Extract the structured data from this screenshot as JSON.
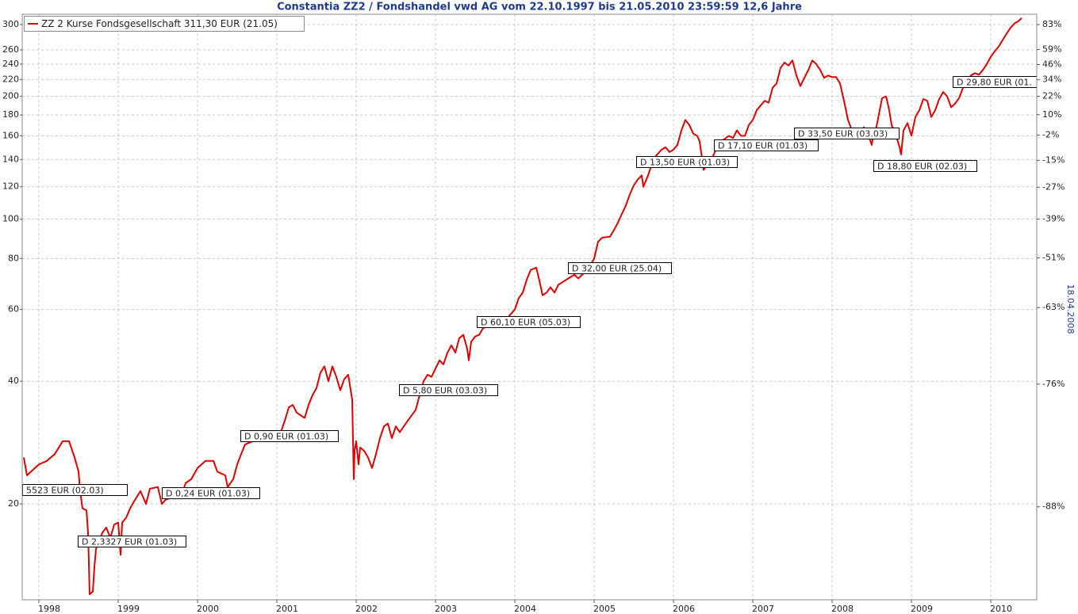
{
  "chart_data": {
    "type": "line",
    "title": "Constantia ZZ2 / Fondshandel vwd AG vom 22.10.1997 bis 21.05.2010 23:59:59 12,6 Jahre",
    "side_label": "18.04.2008",
    "x": [
      1997.81,
      1997.85,
      1997.95,
      1998.0,
      1998.1,
      1998.2,
      1998.3,
      1998.38,
      1998.45,
      1998.5,
      1998.52,
      1998.55,
      1998.6,
      1998.62,
      1998.64,
      1998.68,
      1998.7,
      1998.72,
      1998.75,
      1998.8,
      1998.85,
      1998.9,
      1998.95,
      1999.0,
      1999.03,
      1999.05,
      1999.1,
      1999.15,
      1999.2,
      1999.28,
      1999.35,
      1999.4,
      1999.5,
      1999.55,
      1999.6,
      1999.7,
      1999.8,
      1999.85,
      1999.92,
      2000.0,
      2000.05,
      2000.1,
      2000.2,
      2000.25,
      2000.35,
      2000.38,
      2000.45,
      2000.5,
      2000.55,
      2000.6,
      2000.7,
      2000.8,
      2000.9,
      2000.95,
      2001.0,
      2001.05,
      2001.1,
      2001.15,
      2001.2,
      2001.25,
      2001.3,
      2001.35,
      2001.4,
      2001.45,
      2001.5,
      2001.55,
      2001.6,
      2001.65,
      2001.7,
      2001.75,
      2001.8,
      2001.85,
      2001.9,
      2001.95,
      2001.97,
      2001.98,
      2002.0,
      2002.03,
      2002.05,
      2002.1,
      2002.15,
      2002.2,
      2002.25,
      2002.3,
      2002.35,
      2002.4,
      2002.45,
      2002.5,
      2002.55,
      2002.6,
      2002.65,
      2002.7,
      2002.75,
      2002.8,
      2002.85,
      2002.9,
      2002.95,
      2003.0,
      2003.05,
      2003.1,
      2003.15,
      2003.2,
      2003.25,
      2003.3,
      2003.35,
      2003.4,
      2003.42,
      2003.45,
      2003.5,
      2003.55,
      2003.6,
      2003.7,
      2003.8,
      2003.9,
      2004.0,
      2004.05,
      2004.1,
      2004.15,
      2004.2,
      2004.27,
      2004.3,
      2004.35,
      2004.4,
      2004.45,
      2004.5,
      2004.55,
      2004.6,
      2004.65,
      2004.7,
      2004.75,
      2004.8,
      2004.85,
      2004.92,
      2005.0,
      2005.05,
      2005.1,
      2005.2,
      2005.25,
      2005.3,
      2005.35,
      2005.4,
      2005.45,
      2005.5,
      2005.55,
      2005.6,
      2005.62,
      2005.68,
      2005.72,
      2005.78,
      2005.85,
      2005.9,
      2005.95,
      2006.0,
      2006.05,
      2006.1,
      2006.15,
      2006.2,
      2006.25,
      2006.3,
      2006.33,
      2006.38,
      2006.42,
      2006.5,
      2006.55,
      2006.6,
      2006.7,
      2006.75,
      2006.8,
      2006.85,
      2006.9,
      2006.95,
      2007.0,
      2007.05,
      2007.1,
      2007.15,
      2007.2,
      2007.25,
      2007.3,
      2007.35,
      2007.4,
      2007.45,
      2007.5,
      2007.55,
      2007.6,
      2007.65,
      2007.7,
      2007.75,
      2007.8,
      2007.85,
      2007.9,
      2007.95,
      2008.0,
      2008.05,
      2008.1,
      2008.15,
      2008.2,
      2008.25,
      2008.3,
      2008.35,
      2008.4,
      2008.45,
      2008.5,
      2008.52,
      2008.55,
      2008.6,
      2008.63,
      2008.68,
      2008.72,
      2008.75,
      2008.8,
      2008.85,
      2008.87,
      2008.9,
      2008.95,
      2009.0,
      2009.05,
      2009.1,
      2009.15,
      2009.2,
      2009.25,
      2009.3,
      2009.35,
      2009.4,
      2009.45,
      2009.5,
      2009.55,
      2009.6,
      2009.65,
      2009.7,
      2009.75,
      2009.8,
      2009.85,
      2009.9,
      2009.95,
      2010.0,
      2010.05,
      2010.1,
      2010.15,
      2010.2,
      2010.25,
      2010.3,
      2010.35,
      2010.39
    ],
    "series": [
      {
        "name": "ZZ 2 Kurse Fondsgesellschaft 311,30 EUR (21.05)",
        "color": "#e00000",
        "values": [
          26,
          23.5,
          24.5,
          25,
          25.5,
          26.5,
          28.5,
          28.5,
          26,
          24,
          21.5,
          19.5,
          19.3,
          17,
          12,
          12.2,
          14,
          15.5,
          16,
          17,
          17.5,
          16.5,
          17.8,
          18,
          15,
          18,
          18.5,
          19.5,
          20.3,
          21.5,
          20,
          21.8,
          22,
          20,
          20.5,
          20.8,
          21,
          22.5,
          23,
          24.5,
          25,
          25.5,
          25.5,
          24,
          23.5,
          22,
          23,
          25,
          26.5,
          28,
          28.5,
          28.5,
          29.5,
          30.2,
          29.5,
          30,
          32,
          34.5,
          35,
          33.5,
          33,
          32.5,
          35,
          37,
          38.5,
          42,
          43.5,
          40,
          43.5,
          41,
          38,
          40.5,
          41.5,
          36,
          23,
          27,
          28.5,
          25,
          27.5,
          27,
          26,
          24.5,
          26.5,
          29,
          31,
          31.5,
          29,
          31,
          30,
          31,
          32,
          33,
          34,
          37,
          40,
          41.5,
          41,
          43,
          45,
          44,
          47,
          49,
          47,
          51,
          52,
          48,
          45,
          50,
          51.5,
          52,
          54,
          55,
          57.5,
          57,
          60,
          64,
          66,
          71,
          75,
          76,
          72,
          65,
          66,
          68,
          66,
          69,
          70,
          71,
          72,
          73,
          71.5,
          73,
          75,
          80,
          88,
          90,
          90.5,
          94,
          98,
          103,
          108,
          115,
          121,
          125,
          128,
          120,
          128,
          135,
          143,
          148,
          150,
          146,
          148,
          152,
          165,
          175,
          170,
          162,
          160,
          155,
          132,
          136,
          143,
          150,
          155,
          160,
          158,
          165,
          160,
          160,
          170,
          175,
          185,
          190,
          195,
          193,
          210,
          215,
          235,
          242,
          238,
          245,
          225,
          212,
          222,
          232,
          245,
          240,
          232,
          222,
          225,
          223,
          223,
          215,
          195,
          175,
          165,
          165,
          160,
          168,
          162,
          152,
          162,
          165,
          185,
          198,
          200,
          185,
          170,
          162,
          150,
          144,
          165,
          172,
          160,
          178,
          185,
          197,
          195,
          178,
          185,
          197,
          205,
          200,
          188,
          192,
          198,
          210,
          218,
          225,
          228,
          226,
          232,
          240,
          250,
          258,
          265,
          275,
          285,
          295,
          302,
          306,
          311.3
        ]
      }
    ],
    "xlim": [
      1997.79,
      2010.58
    ],
    "xticks": [
      1998,
      1999,
      2000,
      2001,
      2002,
      2003,
      2004,
      2005,
      2006,
      2007,
      2008,
      2009,
      2010
    ],
    "ylim": [
      11.64,
      318
    ],
    "ylog": true,
    "yticks": [
      20,
      40,
      60,
      80,
      100,
      120,
      140,
      160,
      180,
      200,
      220,
      240,
      260,
      300
    ],
    "y2lim": [
      -92.9,
      94.0
    ],
    "y2ticks": [
      {
        "value": 83,
        "label": "83%"
      },
      {
        "value": 59,
        "label": "59%"
      },
      {
        "value": 46,
        "label": "46%"
      },
      {
        "value": 34,
        "label": "34%"
      },
      {
        "value": 22,
        "label": "22%"
      },
      {
        "value": 10,
        "label": "10%"
      },
      {
        "value": -2,
        "label": "-2%"
      },
      {
        "value": -15,
        "label": "-15%"
      },
      {
        "value": -27,
        "label": "-27%"
      },
      {
        "value": -39,
        "label": "-39%"
      },
      {
        "value": -51,
        "label": "-51%"
      },
      {
        "value": -63,
        "label": "-63%"
      },
      {
        "value": -76,
        "label": "-76%"
      },
      {
        "value": -88,
        "label": "-88%"
      }
    ],
    "grid": true,
    "legend": "upper left",
    "annotations": [
      "5523 EUR (02.03)",
      "D 2,3327 EUR (01.03)",
      "D 0,24 EUR (01.03)",
      "D 0,90 EUR (01.03)",
      "D 5,80 EUR (03.03)",
      "D 60,10 EUR (05.03)",
      "D 32,00 EUR (25.04)",
      "D 13,50 EUR (01.03)",
      "D 17,10 EUR (01.03)",
      "D 33,50 EUR (03.03)",
      "D 18,80 EUR (02.03)",
      "D 29,80 EUR (01."
    ]
  }
}
